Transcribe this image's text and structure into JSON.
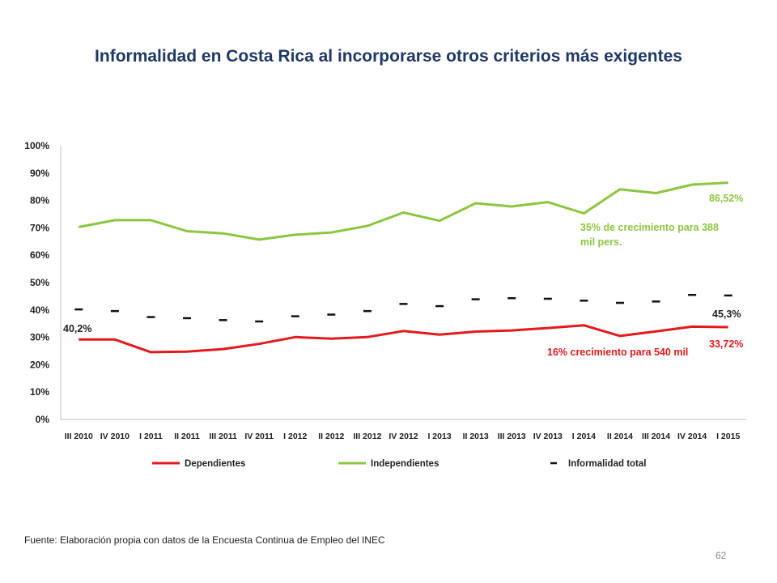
{
  "slide": {
    "title": "Informalidad en Costa Rica al incorporarse otros criterios más exigentes",
    "source": "Fuente: Elaboración propia con datos de la Encuesta Continua de Empleo del INEC",
    "page_number": "62"
  },
  "chart_data": {
    "type": "line",
    "title": "",
    "xlabel": "",
    "ylabel": "",
    "ylim": [
      0,
      100
    ],
    "yticks": [
      "0%",
      "10%",
      "20%",
      "30%",
      "40%",
      "50%",
      "60%",
      "70%",
      "80%",
      "90%",
      "100%"
    ],
    "categories": [
      "III 2010",
      "IV 2010",
      "I 2011",
      "II 2011",
      "III 2011",
      "IV 2011",
      "I 2012",
      "II 2012",
      "III 2012",
      "IV 2012",
      "I 2013",
      "II 2013",
      "III 2013",
      "IV 2013",
      "I 2014",
      "II 2014",
      "III 2014",
      "IV 2014",
      "I 2015"
    ],
    "grid": false,
    "legend_position": "bottom",
    "series": [
      {
        "name": "Dependientes",
        "style": "line",
        "color": "#e31a1c",
        "values": [
          29.2,
          29.2,
          24.6,
          24.8,
          25.7,
          27.6,
          30.1,
          29.5,
          30.1,
          32.3,
          31.0,
          32.1,
          32.5,
          33.4,
          34.4,
          30.5,
          32.2,
          33.9,
          33.72
        ]
      },
      {
        "name": "Independientes",
        "style": "line",
        "color": "#8cc63f",
        "values": [
          70.3,
          72.8,
          72.8,
          68.8,
          68.0,
          65.7,
          67.5,
          68.3,
          70.7,
          75.6,
          72.6,
          79.0,
          77.8,
          79.4,
          75.3,
          84.1,
          82.7,
          85.8,
          86.52
        ]
      },
      {
        "name": "Informalidad total",
        "style": "dash-marker",
        "color": "#111111",
        "values": [
          40.2,
          39.6,
          37.4,
          37.0,
          36.3,
          35.8,
          37.7,
          38.3,
          39.6,
          42.2,
          41.4,
          43.9,
          44.3,
          44.1,
          43.4,
          42.6,
          43.1,
          45.5,
          45.3
        ]
      }
    ],
    "annotations": [
      {
        "text": "40,2%",
        "color": "#222222"
      },
      {
        "text": "86,52%",
        "color": "#8cc63f"
      },
      {
        "text": "35% de crecimiento para 388 mil pers.",
        "color": "#8cc63f"
      },
      {
        "text": "45,3%",
        "color": "#222222"
      },
      {
        "text": "16% crecimiento para 540 mil",
        "color": "#e31a1c"
      },
      {
        "text": "33,72%",
        "color": "#e31a1c"
      }
    ]
  }
}
